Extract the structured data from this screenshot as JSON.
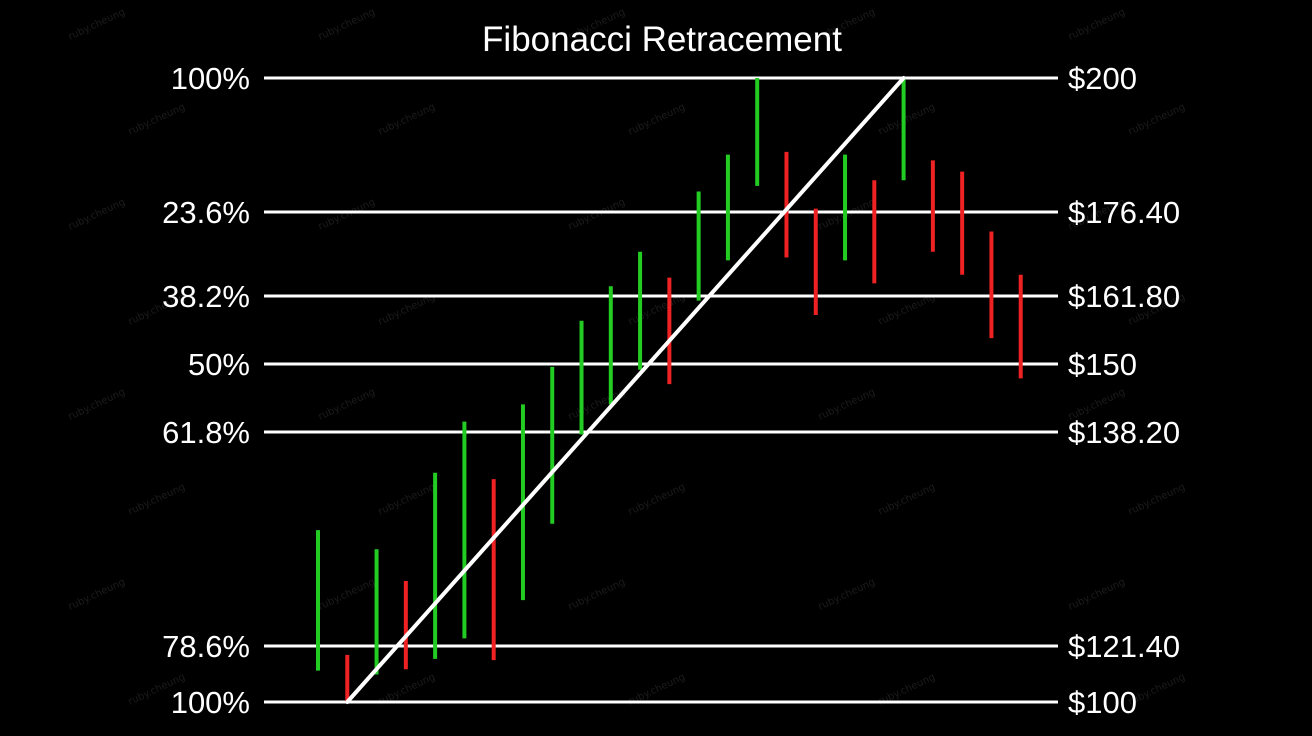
{
  "chart_data": {
    "type": "bar",
    "title": "Fibonacci Retracement",
    "xlabel": "",
    "ylabel": "",
    "grid": false,
    "legend": "none",
    "ylim": [
      100,
      200
    ],
    "colors": {
      "background": "#000000",
      "up": "#22cc22",
      "down": "#ee2222",
      "level_line": "#ffffff",
      "trend_line": "#ffffff",
      "text": "#ffffff"
    },
    "levels": [
      {
        "percent_label": "100%",
        "price_label": "$200",
        "price": 200
      },
      {
        "percent_label": "23.6%",
        "price_label": "$176.40",
        "price": 176.4
      },
      {
        "percent_label": "38.2%",
        "price_label": "$161.80",
        "price": 161.8
      },
      {
        "percent_label": "50%",
        "price_label": "$150",
        "price": 150
      },
      {
        "percent_label": "61.8%",
        "price_label": "$138.20",
        "price": 138.2
      },
      {
        "percent_label": "78.6%",
        "price_label": "$121.40",
        "price": 121.4
      },
      {
        "percent_label": "100%",
        "price_label": "$100",
        "price": 100
      }
    ],
    "trend_line": {
      "from_bar": 2,
      "from_price": 100,
      "to_bar": 21,
      "to_price": 200
    },
    "bars": [
      {
        "index": 1,
        "direction": "up",
        "low": 112.0,
        "high": 130.5
      },
      {
        "index": 2,
        "direction": "down",
        "low": 100.0,
        "high": 118.0
      },
      {
        "index": 3,
        "direction": "up",
        "low": 110.5,
        "high": 129.0
      },
      {
        "index": 4,
        "direction": "down",
        "low": 112.5,
        "high": 126.5
      },
      {
        "index": 5,
        "direction": "up",
        "low": 116.5,
        "high": 135.0
      },
      {
        "index": 6,
        "direction": "up",
        "low": 122.0,
        "high": 140.0
      },
      {
        "index": 7,
        "direction": "down",
        "low": 116.0,
        "high": 134.5
      },
      {
        "index": 8,
        "direction": "up",
        "low": 125.0,
        "high": 143.0
      },
      {
        "index": 9,
        "direction": "up",
        "low": 131.0,
        "high": 149.5
      },
      {
        "index": 10,
        "direction": "up",
        "low": 138.0,
        "high": 157.5
      },
      {
        "index": 11,
        "direction": "up",
        "low": 143.0,
        "high": 163.5
      },
      {
        "index": 12,
        "direction": "up",
        "low": 149.0,
        "high": 169.5
      },
      {
        "index": 13,
        "direction": "down",
        "low": 146.5,
        "high": 165.0
      },
      {
        "index": 14,
        "direction": "up",
        "low": 161.0,
        "high": 180.0
      },
      {
        "index": 15,
        "direction": "up",
        "low": 168.0,
        "high": 186.5
      },
      {
        "index": 16,
        "direction": "up",
        "low": 181.0,
        "high": 200.0
      },
      {
        "index": 17,
        "direction": "down",
        "low": 168.5,
        "high": 187.0
      },
      {
        "index": 18,
        "direction": "down",
        "low": 158.5,
        "high": 177.0
      },
      {
        "index": 19,
        "direction": "up",
        "low": 168.0,
        "high": 186.5
      },
      {
        "index": 20,
        "direction": "down",
        "low": 164.0,
        "high": 182.0
      },
      {
        "index": 21,
        "direction": "up",
        "low": 182.0,
        "high": 200.0
      },
      {
        "index": 22,
        "direction": "down",
        "low": 169.5,
        "high": 185.5
      },
      {
        "index": 23,
        "direction": "down",
        "low": 165.5,
        "high": 183.5
      },
      {
        "index": 24,
        "direction": "down",
        "low": 154.5,
        "high": 173.0
      },
      {
        "index": 25,
        "direction": "down",
        "low": 147.5,
        "high": 165.5
      }
    ],
    "watermark_text": "ruby.cheung"
  }
}
